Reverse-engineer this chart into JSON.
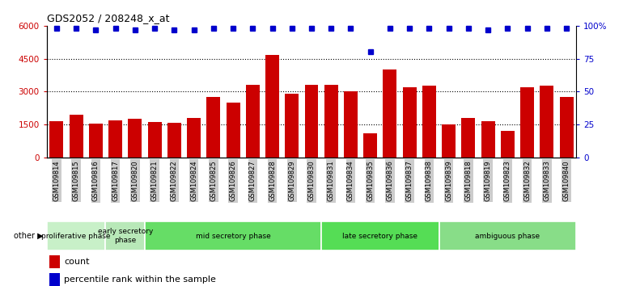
{
  "title": "GDS2052 / 208248_x_at",
  "samples": [
    "GSM109814",
    "GSM109815",
    "GSM109816",
    "GSM109817",
    "GSM109820",
    "GSM109821",
    "GSM109822",
    "GSM109824",
    "GSM109825",
    "GSM109826",
    "GSM109827",
    "GSM109828",
    "GSM109829",
    "GSM109830",
    "GSM109831",
    "GSM109834",
    "GSM109835",
    "GSM109836",
    "GSM109837",
    "GSM109838",
    "GSM109839",
    "GSM109818",
    "GSM109819",
    "GSM109823",
    "GSM109832",
    "GSM109833",
    "GSM109840"
  ],
  "counts": [
    1650,
    1950,
    1550,
    1700,
    1750,
    1600,
    1580,
    1800,
    2750,
    2500,
    3300,
    4650,
    2900,
    3300,
    3300,
    3000,
    1100,
    4000,
    3200,
    3250,
    1500,
    1800,
    1650,
    1200,
    3200,
    3250,
    2750
  ],
  "percentiles": [
    98,
    98,
    97,
    98,
    97,
    98,
    97,
    97,
    98,
    98,
    98,
    98,
    98,
    98,
    98,
    98,
    80,
    98,
    98,
    98,
    98,
    98,
    97,
    98,
    98,
    98,
    98
  ],
  "bar_color": "#cc0000",
  "dot_color": "#0000cc",
  "ylim_left": [
    0,
    6000
  ],
  "ylim_right": [
    0,
    100
  ],
  "yticks_left": [
    0,
    1500,
    3000,
    4500,
    6000
  ],
  "yticks_right": [
    0,
    25,
    50,
    75,
    100
  ],
  "phases": [
    {
      "label": "proliferative phase",
      "start": 0,
      "end": 3,
      "color": "#c8f0c8"
    },
    {
      "label": "early secretory\nphase",
      "start": 3,
      "end": 5,
      "color": "#b8e8b8"
    },
    {
      "label": "mid secretory phase",
      "start": 5,
      "end": 14,
      "color": "#66dd66"
    },
    {
      "label": "late secretory phase",
      "start": 14,
      "end": 20,
      "color": "#55dd55"
    },
    {
      "label": "ambiguous phase",
      "start": 20,
      "end": 27,
      "color": "#88dd88"
    }
  ],
  "other_label": "other",
  "legend_count_label": "count",
  "legend_pct_label": "percentile rank within the sample",
  "tick_bg_color": "#cccccc"
}
